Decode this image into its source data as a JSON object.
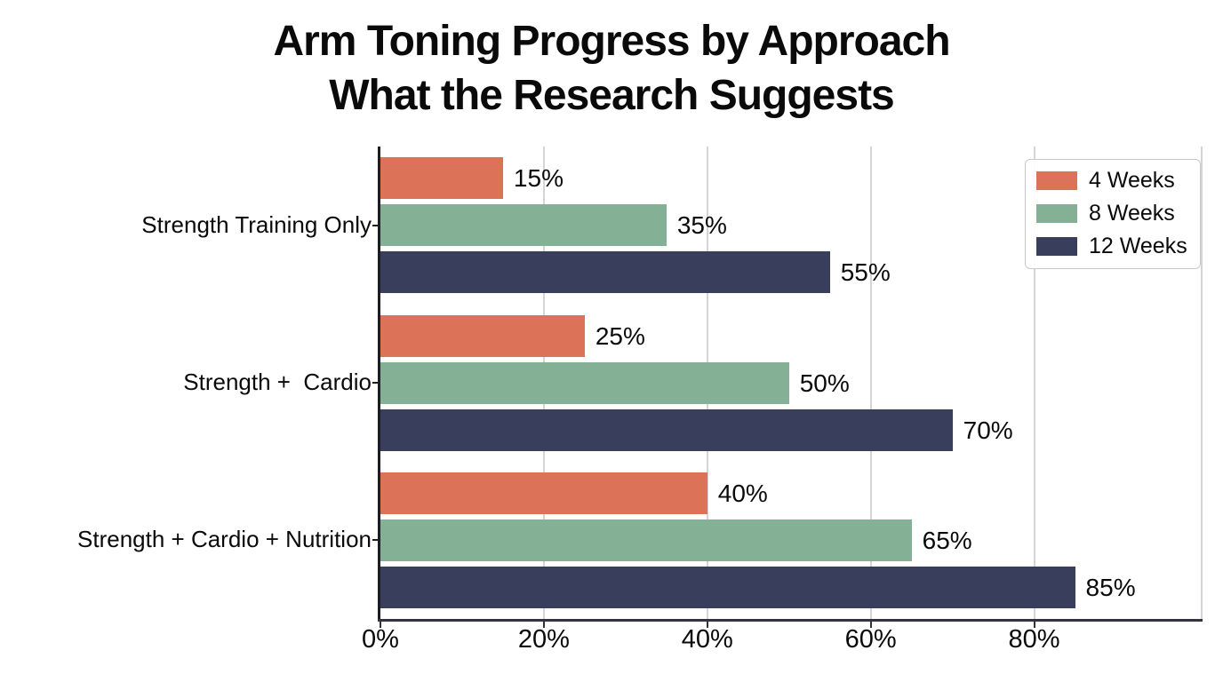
{
  "title": {
    "line1": "Arm Toning Progress by Approach",
    "line2": "What the Research Suggests"
  },
  "chart_data": {
    "type": "bar",
    "orientation": "horizontal",
    "title": "Arm Toning Progress by Approach  What the Research Suggests",
    "categories": [
      "Strength Training Only",
      "Strength +  Cardio",
      "Strength + Cardio + Nutrition"
    ],
    "series": [
      {
        "name": "4 Weeks",
        "color": "#DC7257",
        "values": [
          15,
          25,
          40
        ]
      },
      {
        "name": "8 Weeks",
        "color": "#84B096",
        "values": [
          35,
          50,
          65
        ]
      },
      {
        "name": "12 Weeks",
        "color": "#393E5C",
        "values": [
          55,
          70,
          85
        ]
      }
    ],
    "value_labels": [
      [
        "15%",
        "25%",
        "40%"
      ],
      [
        "35%",
        "50%",
        "65%"
      ],
      [
        "55%",
        "70%",
        "85%"
      ]
    ],
    "xlabel": "",
    "ylabel": "",
    "xticks": [
      0,
      20,
      40,
      60,
      80
    ],
    "xtick_labels": [
      "0%",
      "20%",
      "40%",
      "60%",
      "80%"
    ],
    "xlim": [
      0,
      100.6
    ],
    "grid": "vertical",
    "gridline_color": "#d5d5d9",
    "legend_position": "upper right",
    "background_color": "#ffffff",
    "text_color": "#0a0a0a"
  }
}
